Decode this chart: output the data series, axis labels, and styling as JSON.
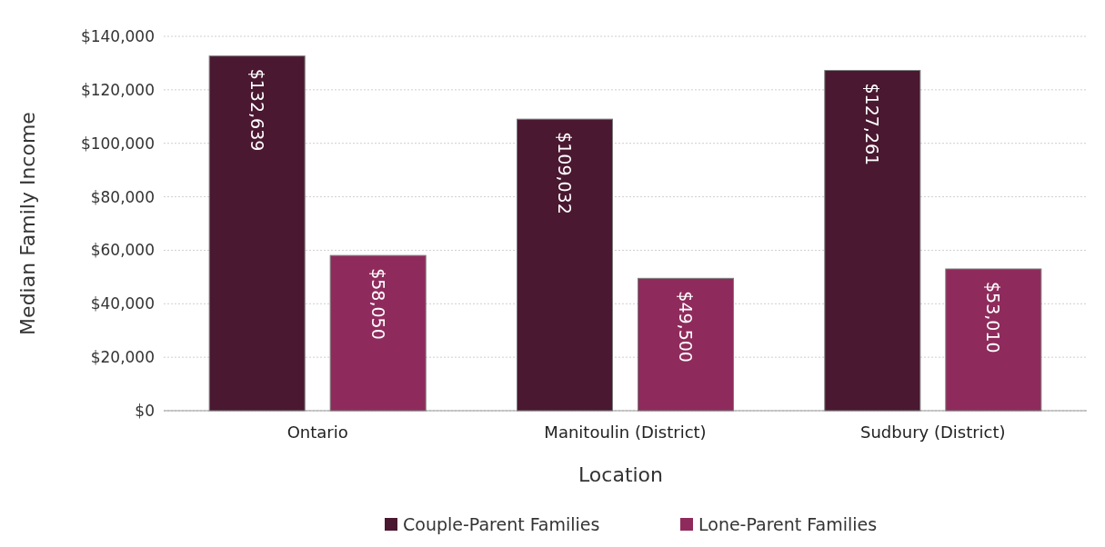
{
  "chart_data": {
    "type": "bar",
    "xlabel": "Location",
    "ylabel": "Median Family Income",
    "categories": [
      "Ontario",
      "Manitoulin (District)",
      "Sudbury (District)"
    ],
    "series": [
      {
        "name": "Couple-Parent Families",
        "color": "#4a1830",
        "values": [
          132639,
          109032,
          127261
        ],
        "value_labels": [
          "$132,639",
          "$109,032",
          "$127,261"
        ]
      },
      {
        "name": "Lone-Parent Families",
        "color": "#8f2b5c",
        "values": [
          58050,
          49500,
          53010
        ],
        "value_labels": [
          "$58,050",
          "$49,500",
          "$53,010"
        ]
      }
    ],
    "ylim": [
      0,
      140000
    ],
    "yticks": [
      {
        "value": 0,
        "label": "$0"
      },
      {
        "value": 20000,
        "label": "$20,000"
      },
      {
        "value": 40000,
        "label": "$40,000"
      },
      {
        "value": 60000,
        "label": "$60,000"
      },
      {
        "value": 80000,
        "label": "$80,000"
      },
      {
        "value": 100000,
        "label": "$100,000"
      },
      {
        "value": 120000,
        "label": "$120,000"
      },
      {
        "value": 140000,
        "label": "$140,000"
      }
    ],
    "grid": "y",
    "legend": "bottom"
  }
}
